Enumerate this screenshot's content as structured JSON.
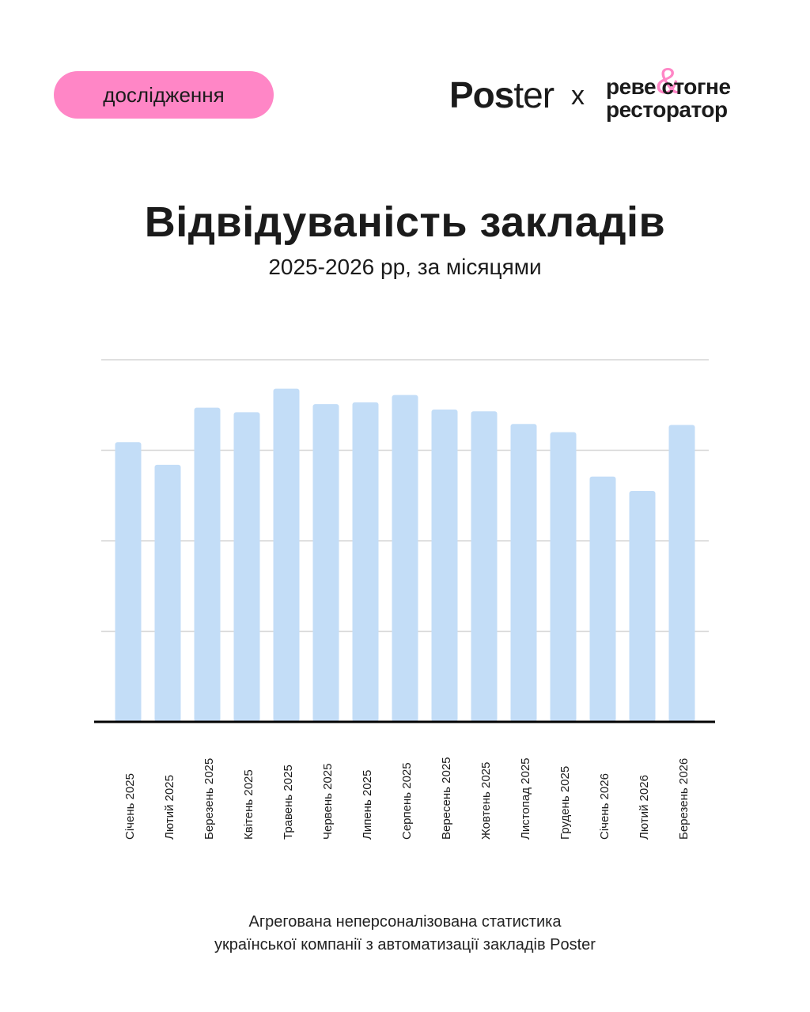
{
  "badge": "дослідження",
  "brands": {
    "poster_bold": "Pos",
    "poster_rest": "ter",
    "times": "x",
    "partner_line1": "реве стогне",
    "partner_line2": "ресторатор",
    "partner_amp": "&"
  },
  "header": {
    "title": "Відвідуваність закладів",
    "subtitle": "2025-2026 рр, за місяцями"
  },
  "chart_data": {
    "type": "bar",
    "categories": [
      "Січень 2025",
      "Лютий 2025",
      "Березень 2025",
      "Квітень 2025",
      "Травень 2025",
      "Червень 2025",
      "Липень 2025",
      "Серпень 2025",
      "Вересень 2025",
      "Жовтень 2025",
      "Листопад 2025",
      "Грудень 2025",
      "Січень 2026",
      "Лютий 2026",
      "Березень 2026"
    ],
    "values": [
      3.09,
      2.84,
      3.47,
      3.42,
      3.68,
      3.51,
      3.53,
      3.61,
      3.45,
      3.43,
      3.29,
      3.2,
      2.71,
      2.55,
      3.28
    ],
    "ylim": [
      0,
      4
    ],
    "yticks": [
      1,
      2,
      3,
      4
    ],
    "grid": true,
    "bar_color": "#c3ddf7",
    "grid_color": "#d6d6d6",
    "axis_color": "#000000"
  },
  "footnote": {
    "line1": "Агрегована неперсоналізована статистика",
    "line2": "української компанії з автоматизації закладів Poster"
  }
}
